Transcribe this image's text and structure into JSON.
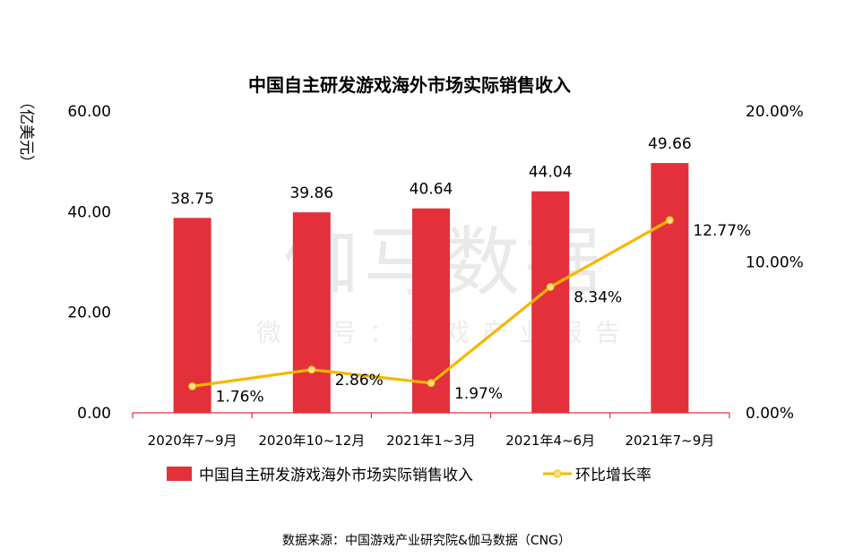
{
  "chart_data": {
    "type": "bar",
    "title": "中国自主研发游戏海外市场实际销售收入",
    "ylabel": "（亿美元）",
    "categories": [
      "2020年7~9月",
      "2020年10~12月",
      "2021年1~3月",
      "2021年4~6月",
      "2021年7~9月"
    ],
    "y_ticks": [
      "0.00",
      "20.00",
      "40.00",
      "60.00"
    ],
    "y2_ticks": [
      "0.00%",
      "10.00%",
      "20.00%"
    ],
    "ylim": [
      0,
      60
    ],
    "y2lim": [
      0,
      20
    ],
    "series": [
      {
        "name": "中国自主研发游戏海外市场实际销售收入",
        "type": "bar",
        "axis": "left",
        "color": "#e3303a",
        "values": [
          38.75,
          39.86,
          40.64,
          44.04,
          49.66
        ],
        "labels": [
          "38.75",
          "39.86",
          "40.64",
          "44.04",
          "49.66"
        ]
      },
      {
        "name": "环比增长率",
        "type": "line",
        "axis": "right",
        "color": "#f5b800",
        "values": [
          1.76,
          2.86,
          1.97,
          8.34,
          12.77
        ],
        "labels": [
          "1.76%",
          "2.86%",
          "1.97%",
          "8.34%",
          "12.77%"
        ]
      }
    ],
    "legend": "bottom",
    "grid": false
  },
  "watermark": {
    "main": "伽马数据",
    "sub": "微信号：游戏产业报告"
  },
  "source": "数据来源：中国游戏产业研究院&伽马数据（CNG）",
  "colors": {
    "bar": "#e3303a",
    "line": "#f5b800",
    "marker": "#f7e08a",
    "axis": "#e3303a"
  }
}
